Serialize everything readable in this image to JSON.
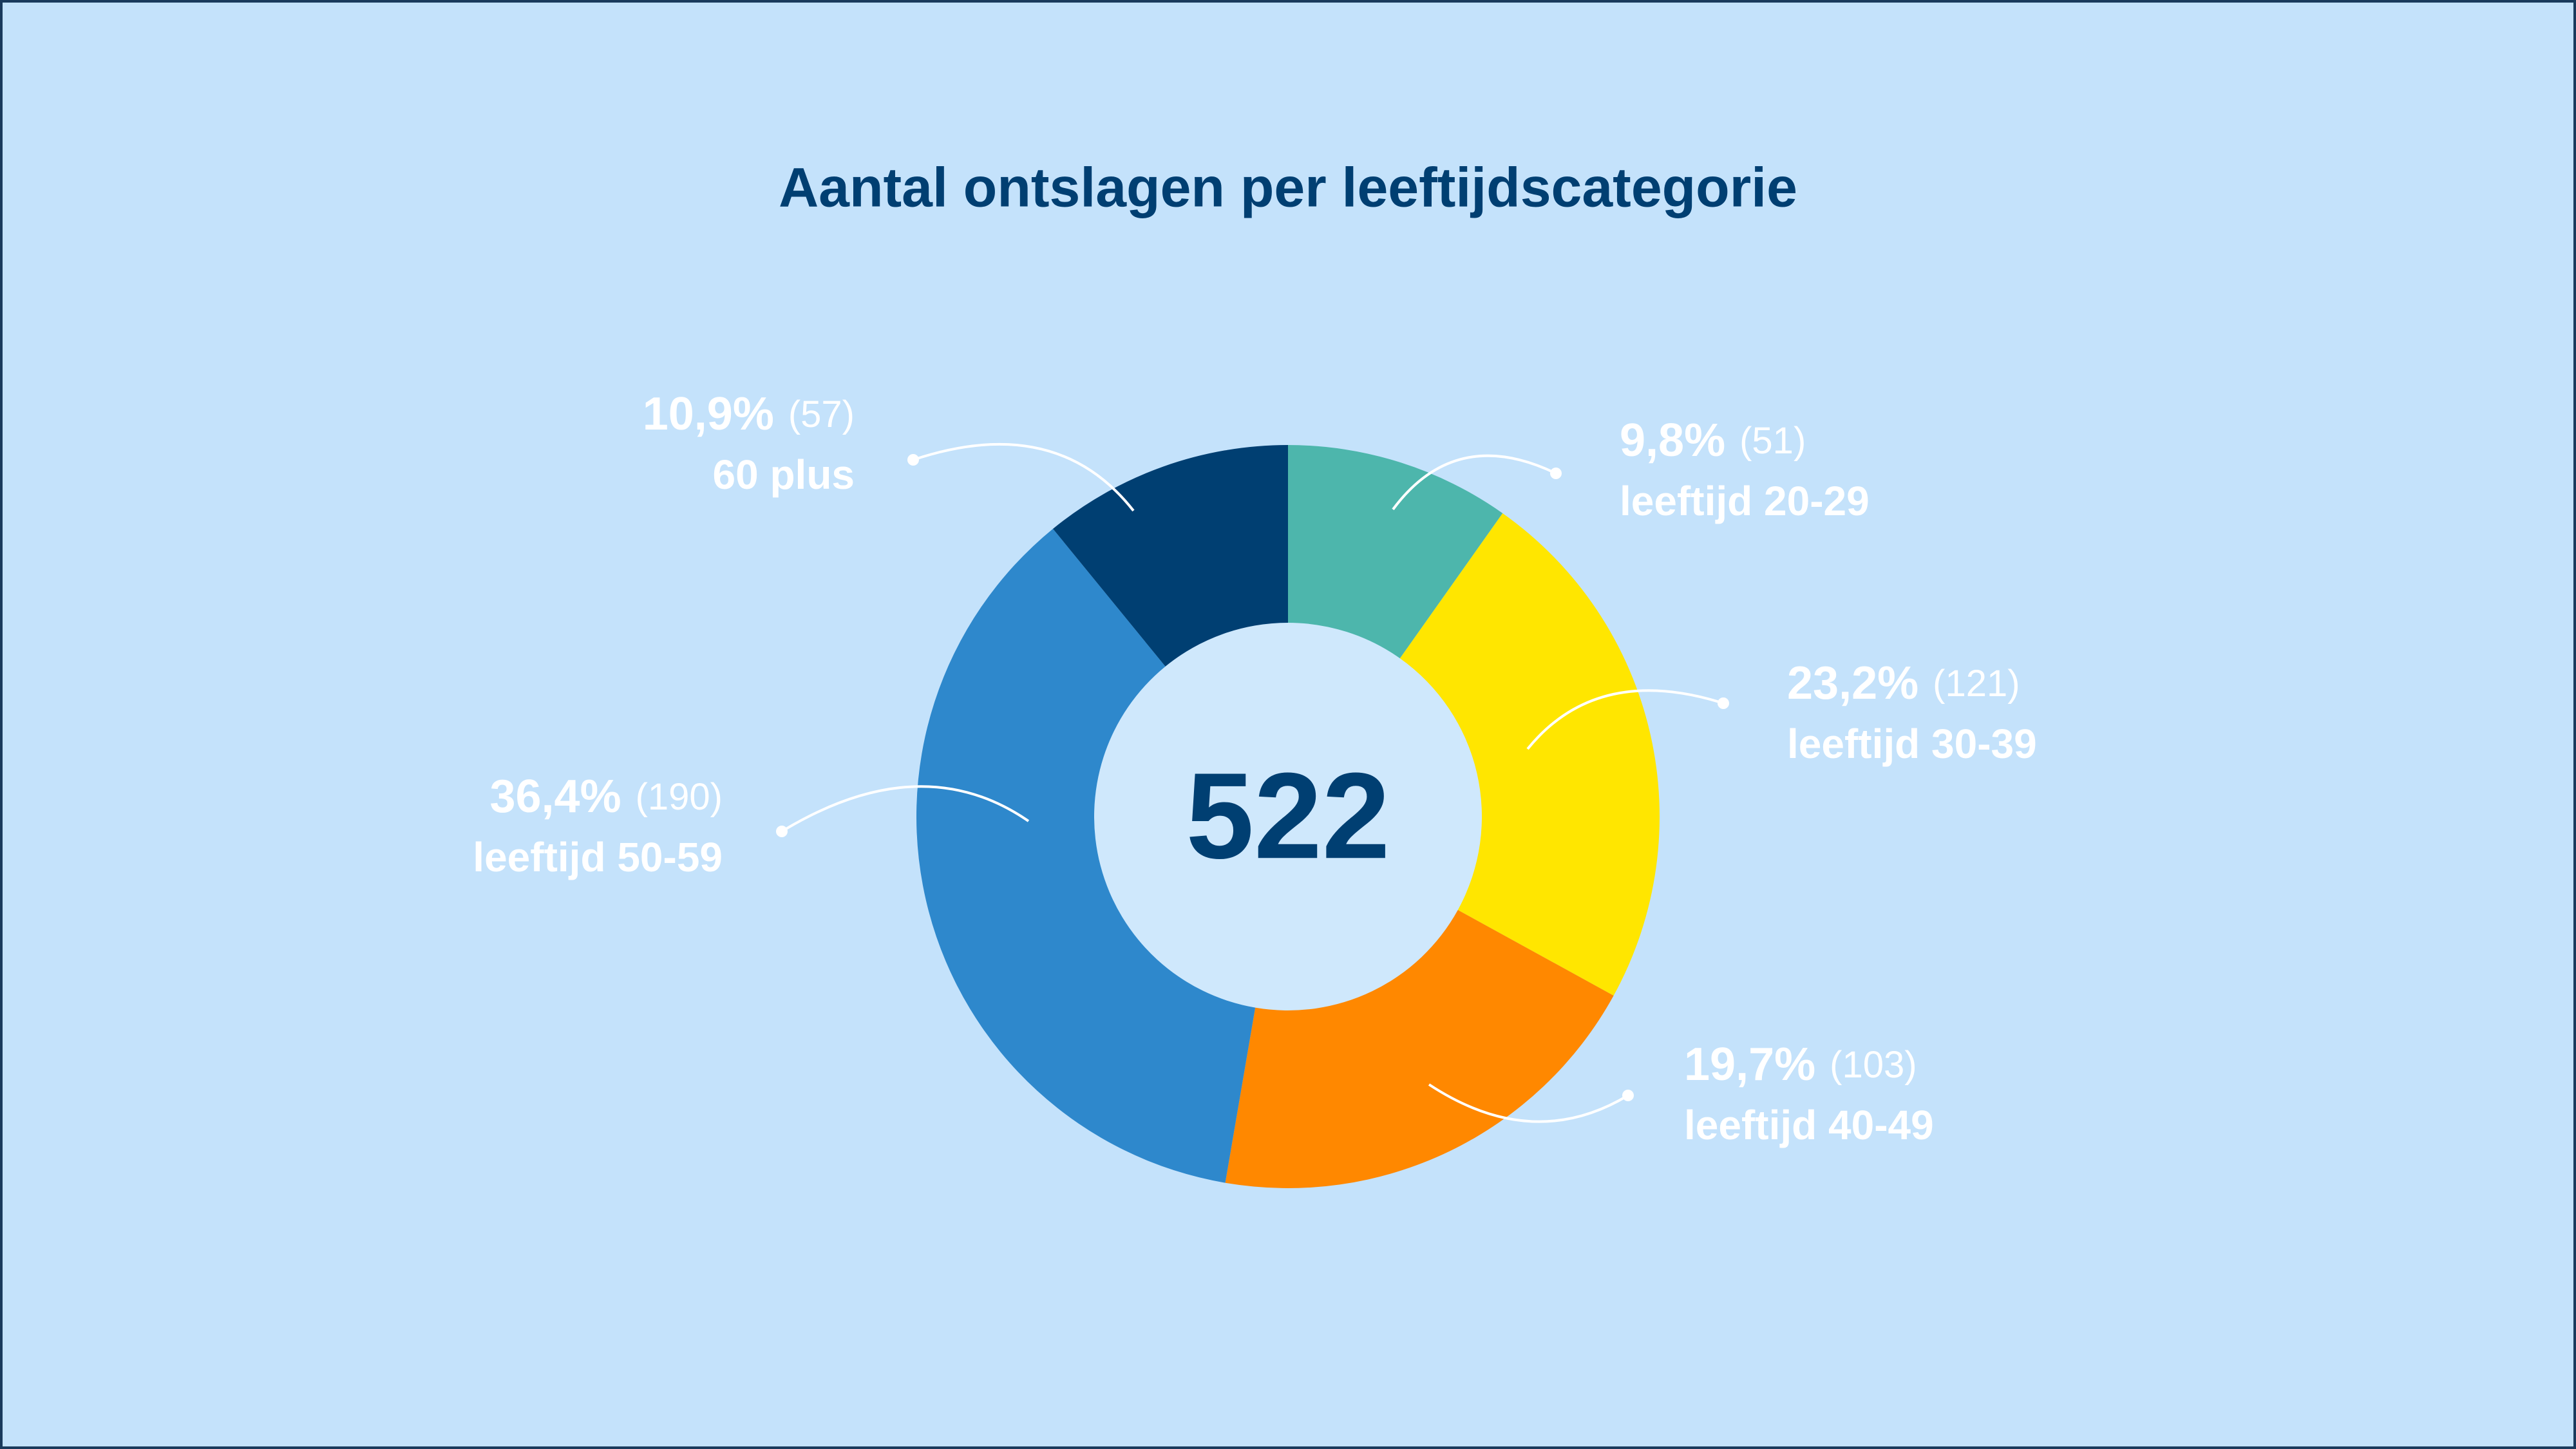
{
  "chart_data": {
    "type": "donut",
    "title": "Aantal ontslagen per leeftijdscategorie",
    "categories": [
      "leeftijd 20-29",
      "leeftijd 30-39",
      "leeftijd 40-49",
      "leeftijd 50-59",
      "60 plus"
    ],
    "values": [
      9.8,
      23.2,
      19.7,
      36.4,
      10.9
    ],
    "value_labels": [
      "9,8%",
      "23,2%",
      "19,7%",
      "36,4%",
      "10,9%"
    ],
    "counts": [
      51,
      121,
      103,
      190,
      57
    ],
    "count_labels": [
      "(51)",
      "(121)",
      "(103)",
      "(190)",
      "(57)"
    ],
    "colors": [
      "#4db6ac",
      "#ffe600",
      "#ff8800",
      "#2e88cc",
      "#003f72"
    ],
    "total": 522
  }
}
